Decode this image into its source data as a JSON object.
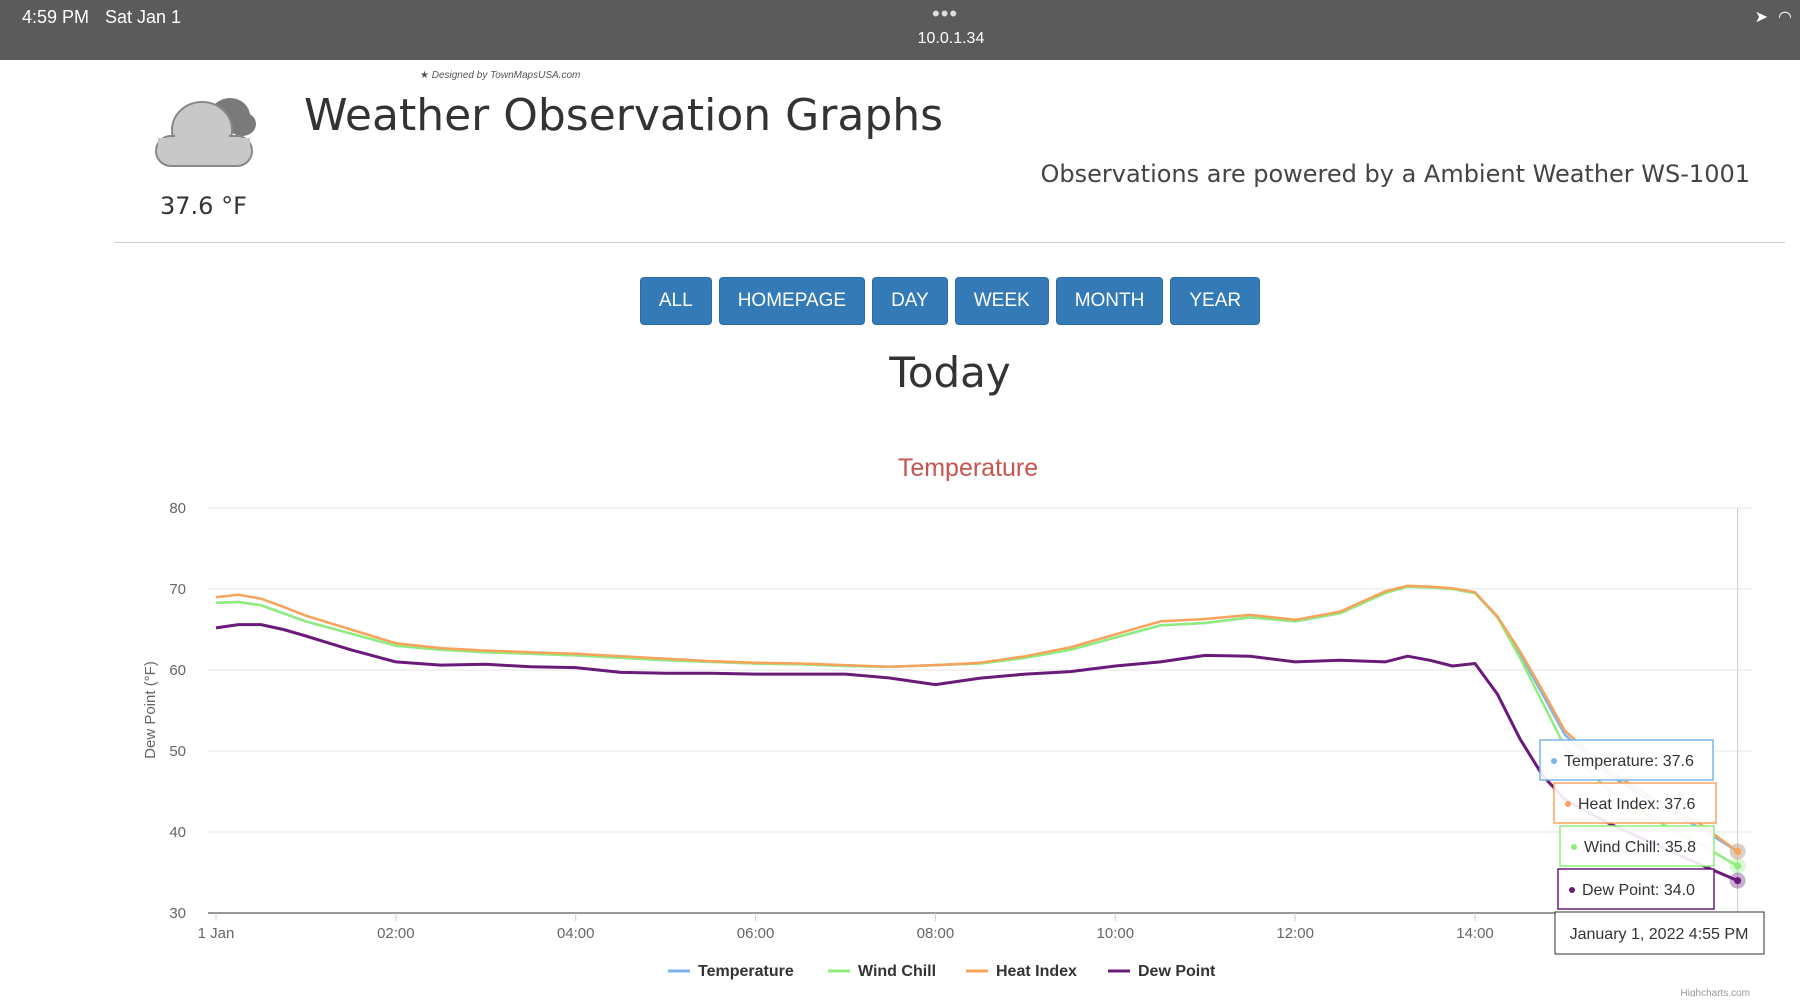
{
  "statusbar": {
    "time": "4:59 PM",
    "date": "Sat Jan 1",
    "url": "10.0.1.34",
    "dots": "•••"
  },
  "header": {
    "designed_by": "★ Designed by TownMapsUSA.com",
    "current_temp": "37.6 °F",
    "title": "Weather Observation Graphs",
    "powered_by": "Observations are powered by a Ambient Weather WS-1001",
    "weather_icon": "cloudy-icon"
  },
  "nav": {
    "buttons": [
      "ALL",
      "HOMEPAGE",
      "DAY",
      "WEEK",
      "MONTH",
      "YEAR"
    ]
  },
  "section": {
    "title": "Today"
  },
  "tooltip": {
    "date": "January 1, 2022 4:55 PM",
    "items": [
      "Temperature: 37.6",
      "Heat Index: 37.6",
      "Wind Chill: 35.8",
      "Dew Point: 34.0"
    ]
  },
  "colors": {
    "temperature": "#7cb5ec",
    "wind_chill": "#90ed7d",
    "heat_index": "#f7a35c",
    "dew_point": "#6a1b7a",
    "title": "#c9534f",
    "button": "#337ab7"
  },
  "chart_data": {
    "type": "line",
    "title": "Temperature",
    "ylabel": "Dew Point (°F)",
    "ylim": [
      30,
      80
    ],
    "yticks": [
      30,
      40,
      50,
      60,
      70,
      80
    ],
    "xticks": [
      "1 Jan",
      "02:00",
      "04:00",
      "06:00",
      "08:00",
      "10:00",
      "12:00",
      "14:00"
    ],
    "xtick_hours": [
      0,
      2,
      4,
      6,
      8,
      10,
      12,
      14
    ],
    "x_hours": [
      0,
      0.25,
      0.5,
      0.75,
      1,
      1.5,
      2,
      2.5,
      3,
      3.5,
      4,
      4.5,
      5,
      5.5,
      6,
      6.5,
      7,
      7.5,
      8,
      8.5,
      9,
      9.5,
      10,
      10.5,
      11,
      11.5,
      12,
      12.5,
      13,
      13.25,
      13.5,
      13.75,
      14,
      14.25,
      14.5,
      14.75,
      15,
      15.5,
      16,
      16.5,
      16.92
    ],
    "series": [
      {
        "name": "Temperature",
        "values": [
          68.3,
          68.4,
          68.0,
          67.0,
          66.0,
          64.5,
          63.0,
          62.5,
          62.2,
          62.0,
          61.8,
          61.5,
          61.2,
          61.0,
          60.8,
          60.7,
          60.5,
          60.4,
          60.6,
          60.8,
          61.5,
          62.5,
          64.0,
          65.5,
          65.8,
          66.5,
          66.0,
          67.0,
          69.5,
          70.3,
          70.2,
          70.0,
          69.5,
          66.5,
          62.0,
          57.0,
          52.0,
          47.0,
          43.5,
          40.5,
          37.6
        ]
      },
      {
        "name": "Wind Chill",
        "values": [
          68.3,
          68.4,
          68.0,
          67.0,
          66.0,
          64.5,
          63.0,
          62.5,
          62.2,
          62.0,
          61.8,
          61.5,
          61.2,
          61.0,
          60.8,
          60.7,
          60.5,
          60.4,
          60.6,
          60.8,
          61.5,
          62.5,
          64.0,
          65.5,
          65.8,
          66.5,
          66.0,
          67.0,
          69.5,
          70.3,
          70.2,
          70.0,
          69.5,
          66.5,
          61.5,
          56.0,
          50.5,
          45.0,
          41.5,
          38.5,
          35.8
        ]
      },
      {
        "name": "Heat Index",
        "values": [
          69.0,
          69.3,
          68.8,
          67.8,
          66.7,
          65.0,
          63.3,
          62.7,
          62.4,
          62.2,
          62.0,
          61.7,
          61.4,
          61.1,
          60.9,
          60.8,
          60.6,
          60.4,
          60.6,
          60.9,
          61.7,
          62.8,
          64.4,
          66.0,
          66.3,
          66.8,
          66.2,
          67.2,
          69.7,
          70.4,
          70.3,
          70.1,
          69.6,
          66.6,
          62.3,
          57.5,
          52.5,
          47.5,
          44.0,
          41.0,
          37.6
        ]
      },
      {
        "name": "Dew Point",
        "values": [
          65.2,
          65.6,
          65.6,
          65.0,
          64.2,
          62.5,
          61.0,
          60.6,
          60.7,
          60.4,
          60.3,
          59.7,
          59.6,
          59.6,
          59.5,
          59.5,
          59.5,
          59.0,
          58.2,
          59.0,
          59.5,
          59.8,
          60.5,
          61.0,
          61.8,
          61.7,
          61.0,
          61.2,
          61.0,
          61.7,
          61.2,
          60.5,
          60.8,
          57.0,
          51.5,
          47.0,
          44.0,
          41.0,
          38.5,
          36.0,
          34.0
        ]
      }
    ],
    "legend": [
      "Temperature",
      "Wind Chill",
      "Heat Index",
      "Dew Point"
    ],
    "legend_position": "bottom-center",
    "grid": true,
    "credits": "Highcharts.com"
  }
}
